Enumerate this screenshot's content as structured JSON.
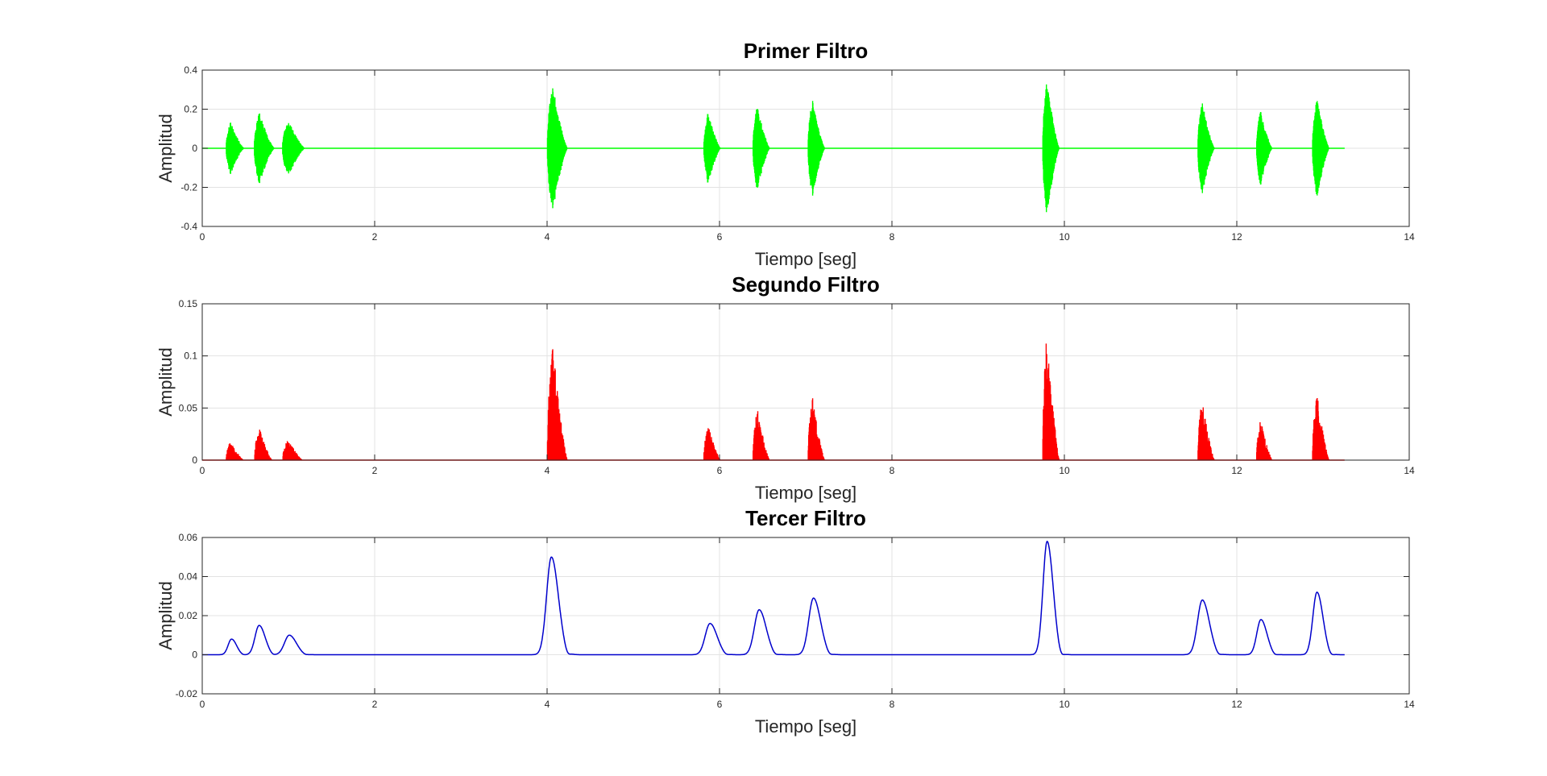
{
  "chart_data": [
    {
      "type": "line",
      "title": "Primer Filtro",
      "xlabel": "Tiempo [seg]",
      "ylabel": "Amplitud",
      "xlim": [
        0,
        14
      ],
      "ylim": [
        -0.4,
        0.4
      ],
      "xticks": [
        0,
        2,
        4,
        6,
        8,
        10,
        12,
        14
      ],
      "yticks": [
        -0.4,
        -0.2,
        0,
        0.2,
        0.4
      ],
      "ytick_labels": [
        "-0.4",
        "-0.2",
        "0",
        "0.2",
        "0.4"
      ],
      "grid": true,
      "color": "#00ff00",
      "style": "oscillation",
      "x_end": 13.25,
      "events": [
        {
          "t": 0.3,
          "amp": 0.14,
          "dur": 0.16
        },
        {
          "t": 0.63,
          "amp": 0.19,
          "dur": 0.18
        },
        {
          "t": 0.96,
          "amp": 0.15,
          "dur": 0.2
        },
        {
          "t": 4.03,
          "amp": 0.35,
          "dur": 0.18
        },
        {
          "t": 5.84,
          "amp": 0.19,
          "dur": 0.15
        },
        {
          "t": 6.41,
          "amp": 0.23,
          "dur": 0.15
        },
        {
          "t": 7.05,
          "amp": 0.26,
          "dur": 0.15
        },
        {
          "t": 9.77,
          "amp": 0.36,
          "dur": 0.15
        },
        {
          "t": 11.57,
          "amp": 0.25,
          "dur": 0.15
        },
        {
          "t": 12.25,
          "amp": 0.2,
          "dur": 0.14
        },
        {
          "t": 12.9,
          "amp": 0.27,
          "dur": 0.15
        }
      ]
    },
    {
      "type": "line",
      "title": "Segundo Filtro",
      "xlabel": "Tiempo [seg]",
      "ylabel": "Amplitud",
      "xlim": [
        0,
        14
      ],
      "ylim": [
        0,
        0.15
      ],
      "xticks": [
        0,
        2,
        4,
        6,
        8,
        10,
        12,
        14
      ],
      "yticks": [
        0,
        0.05,
        0.1,
        0.15
      ],
      "ytick_labels": [
        "0",
        "0.05",
        "0.1",
        "0.15"
      ],
      "grid": true,
      "color": "#ff0000",
      "style": "rectified",
      "x_end": 13.25,
      "events": [
        {
          "t": 0.3,
          "amp": 0.02,
          "dur": 0.16
        },
        {
          "t": 0.63,
          "amp": 0.033,
          "dur": 0.16
        },
        {
          "t": 0.96,
          "amp": 0.022,
          "dur": 0.18
        },
        {
          "t": 4.03,
          "amp": 0.12,
          "dur": 0.18
        },
        {
          "t": 5.84,
          "amp": 0.036,
          "dur": 0.15
        },
        {
          "t": 6.41,
          "amp": 0.053,
          "dur": 0.15
        },
        {
          "t": 7.05,
          "amp": 0.065,
          "dur": 0.15
        },
        {
          "t": 9.77,
          "amp": 0.128,
          "dur": 0.15
        },
        {
          "t": 11.57,
          "amp": 0.064,
          "dur": 0.15
        },
        {
          "t": 12.25,
          "amp": 0.042,
          "dur": 0.14
        },
        {
          "t": 12.9,
          "amp": 0.07,
          "dur": 0.15
        }
      ]
    },
    {
      "type": "line",
      "title": "Tercer Filtro",
      "xlabel": "Tiempo [seg]",
      "ylabel": "Amplitud",
      "xlim": [
        0,
        14
      ],
      "ylim": [
        -0.02,
        0.06
      ],
      "xticks": [
        0,
        2,
        4,
        6,
        8,
        10,
        12,
        14
      ],
      "yticks": [
        -0.02,
        0,
        0.02,
        0.04,
        0.06
      ],
      "ytick_labels": [
        "-0.02",
        "0",
        "0.02",
        "0.04",
        "0.06"
      ],
      "grid": true,
      "color": "#0000cc",
      "style": "envelope",
      "x_end": 13.25,
      "events": [
        {
          "t": 0.34,
          "amp": 0.008,
          "w": 0.05
        },
        {
          "t": 0.66,
          "amp": 0.015,
          "w": 0.06
        },
        {
          "t": 1.01,
          "amp": 0.01,
          "w": 0.07
        },
        {
          "t": 4.05,
          "amp": 0.05,
          "w": 0.07
        },
        {
          "t": 5.89,
          "amp": 0.016,
          "w": 0.07
        },
        {
          "t": 6.46,
          "amp": 0.023,
          "w": 0.07
        },
        {
          "t": 7.09,
          "amp": 0.029,
          "w": 0.07
        },
        {
          "t": 9.8,
          "amp": 0.058,
          "w": 0.06
        },
        {
          "t": 11.6,
          "amp": 0.028,
          "w": 0.07
        },
        {
          "t": 12.28,
          "amp": 0.018,
          "w": 0.06
        },
        {
          "t": 12.93,
          "amp": 0.032,
          "w": 0.06
        }
      ]
    }
  ]
}
